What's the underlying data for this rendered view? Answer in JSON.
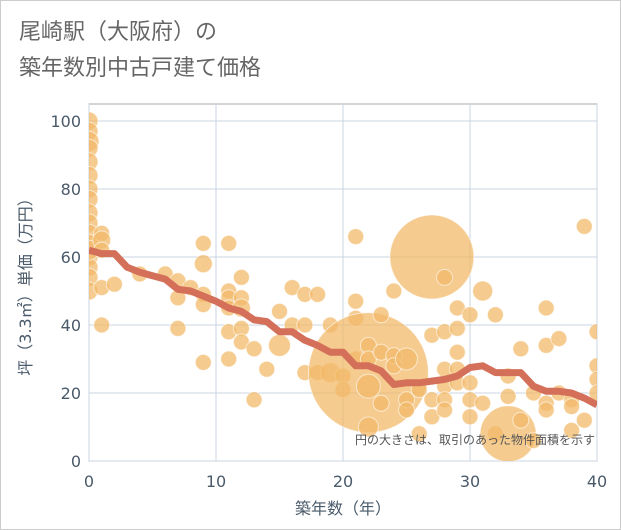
{
  "chart_data": {
    "type": "scatter",
    "title_line1": "尾崎駅（大阪府）の",
    "title_line2": "築年数別中古戸建て価格",
    "xlabel": "築年数（年）",
    "ylabel": "坪（3.3㎡）単価（万円）",
    "xlim": [
      0,
      40
    ],
    "ylim": [
      0,
      105
    ],
    "xticks": [
      "0",
      "10",
      "20",
      "30",
      "40"
    ],
    "yticks": [
      "0",
      "20",
      "40",
      "60",
      "80",
      "100"
    ],
    "note": "円の大きさは、取引のあった物件面積を示す",
    "grid": true,
    "bubble_color": "#f2b96a",
    "line_color": "#d4705a",
    "bubbles": [
      [
        0,
        100,
        9
      ],
      [
        0,
        97,
        9
      ],
      [
        0,
        94,
        10
      ],
      [
        0,
        92,
        9
      ],
      [
        0,
        88,
        9
      ],
      [
        0,
        84,
        9
      ],
      [
        0,
        80,
        9
      ],
      [
        0,
        77,
        9
      ],
      [
        0,
        73,
        9
      ],
      [
        0,
        70,
        9
      ],
      [
        0,
        67,
        9
      ],
      [
        0,
        64,
        9
      ],
      [
        0,
        60,
        9
      ],
      [
        0,
        57,
        9
      ],
      [
        0,
        54,
        9
      ],
      [
        0,
        50,
        9
      ],
      [
        0,
        62,
        10
      ],
      [
        1,
        67,
        8
      ],
      [
        1,
        65,
        9
      ],
      [
        1,
        62,
        8
      ],
      [
        1,
        51,
        8
      ],
      [
        1,
        40,
        8
      ],
      [
        2,
        52,
        8
      ],
      [
        4,
        55,
        8
      ],
      [
        6,
        55,
        8
      ],
      [
        7,
        53,
        8
      ],
      [
        7,
        48,
        8
      ],
      [
        7,
        39,
        8
      ],
      [
        8,
        51,
        8
      ],
      [
        9,
        64,
        8
      ],
      [
        9,
        58,
        9
      ],
      [
        9,
        49,
        8
      ],
      [
        9,
        46,
        8
      ],
      [
        9,
        29,
        8
      ],
      [
        11,
        64,
        8
      ],
      [
        11,
        50,
        8
      ],
      [
        11,
        48,
        8
      ],
      [
        11,
        45,
        8
      ],
      [
        11,
        38,
        8
      ],
      [
        11,
        30,
        8
      ],
      [
        12,
        54,
        8
      ],
      [
        12,
        48,
        8
      ],
      [
        12,
        45,
        9
      ],
      [
        12,
        39,
        8
      ],
      [
        12,
        35,
        8
      ],
      [
        13,
        33,
        8
      ],
      [
        13,
        18,
        8
      ],
      [
        14,
        27,
        8
      ],
      [
        15,
        44,
        8
      ],
      [
        15,
        34,
        11
      ],
      [
        16,
        51,
        8
      ],
      [
        16,
        40,
        8
      ],
      [
        17,
        49,
        8
      ],
      [
        17,
        40,
        8
      ],
      [
        17,
        26,
        8
      ],
      [
        18,
        49,
        8
      ],
      [
        18,
        26,
        8
      ],
      [
        19,
        40,
        8
      ],
      [
        19,
        26,
        10
      ],
      [
        20,
        25,
        8
      ],
      [
        20,
        21,
        8
      ],
      [
        21,
        66,
        8
      ],
      [
        21,
        47,
        8
      ],
      [
        21,
        42,
        8
      ],
      [
        21,
        30,
        8
      ],
      [
        22,
        26,
        60
      ],
      [
        22,
        34,
        8
      ],
      [
        22,
        30,
        8
      ],
      [
        22,
        22,
        12
      ],
      [
        22,
        10,
        10
      ],
      [
        23,
        43,
        8
      ],
      [
        23,
        32,
        8
      ],
      [
        23,
        17,
        8
      ],
      [
        24,
        50,
        8
      ],
      [
        24,
        31,
        8
      ],
      [
        24,
        28,
        8
      ],
      [
        25,
        30,
        11
      ],
      [
        25,
        18,
        8
      ],
      [
        25,
        15,
        8
      ],
      [
        26,
        21,
        8
      ],
      [
        26,
        8,
        8
      ],
      [
        27,
        60,
        42
      ],
      [
        27,
        18,
        8
      ],
      [
        27,
        13,
        8
      ],
      [
        27,
        37,
        8
      ],
      [
        28,
        54,
        8
      ],
      [
        28,
        38,
        8
      ],
      [
        28,
        27,
        8
      ],
      [
        28,
        22,
        8
      ],
      [
        28,
        18,
        8
      ],
      [
        28,
        15,
        8
      ],
      [
        29,
        45,
        8
      ],
      [
        29,
        39,
        8
      ],
      [
        29,
        32,
        8
      ],
      [
        29,
        27,
        8
      ],
      [
        29,
        23,
        8
      ],
      [
        30,
        43,
        8
      ],
      [
        30,
        23,
        8
      ],
      [
        30,
        18,
        8
      ],
      [
        30,
        13,
        8
      ],
      [
        31,
        50,
        10
      ],
      [
        31,
        17,
        8
      ],
      [
        32,
        43,
        8
      ],
      [
        32,
        8,
        8
      ],
      [
        33,
        25,
        8
      ],
      [
        33,
        19,
        8
      ],
      [
        33,
        8,
        28
      ],
      [
        34,
        33,
        8
      ],
      [
        34,
        12,
        8
      ],
      [
        35,
        20,
        8
      ],
      [
        35,
        6,
        8
      ],
      [
        36,
        45,
        8
      ],
      [
        36,
        34,
        8
      ],
      [
        36,
        17,
        8
      ],
      [
        36,
        15,
        8
      ],
      [
        37,
        36,
        8
      ],
      [
        37,
        20,
        8
      ],
      [
        38,
        18,
        8
      ],
      [
        38,
        16,
        8
      ],
      [
        38,
        9,
        8
      ],
      [
        39,
        69,
        8
      ],
      [
        39,
        12,
        8
      ],
      [
        40,
        38,
        8
      ],
      [
        40,
        28,
        8
      ],
      [
        40,
        24,
        8
      ],
      [
        40,
        20,
        8
      ]
    ],
    "trend": {
      "x": [
        0,
        1,
        2,
        3,
        4,
        5,
        6,
        7,
        8,
        9,
        10,
        11,
        12,
        13,
        14,
        15,
        16,
        17,
        18,
        19,
        20,
        21,
        22,
        23,
        24,
        25,
        26,
        27,
        28,
        29,
        30,
        31,
        32,
        33,
        34,
        35,
        36,
        37,
        38,
        39,
        40
      ],
      "y": [
        62,
        61,
        61,
        57,
        55.5,
        54.5,
        53.5,
        50.5,
        50,
        48.5,
        47,
        45,
        44,
        41.5,
        41,
        38,
        38,
        35.5,
        34,
        32,
        32,
        28,
        28,
        26.5,
        22.5,
        23,
        23,
        23.5,
        24,
        25,
        27.5,
        28,
        26,
        26,
        26,
        22,
        20.5,
        20.5,
        20,
        18.5,
        16.5
      ]
    }
  }
}
